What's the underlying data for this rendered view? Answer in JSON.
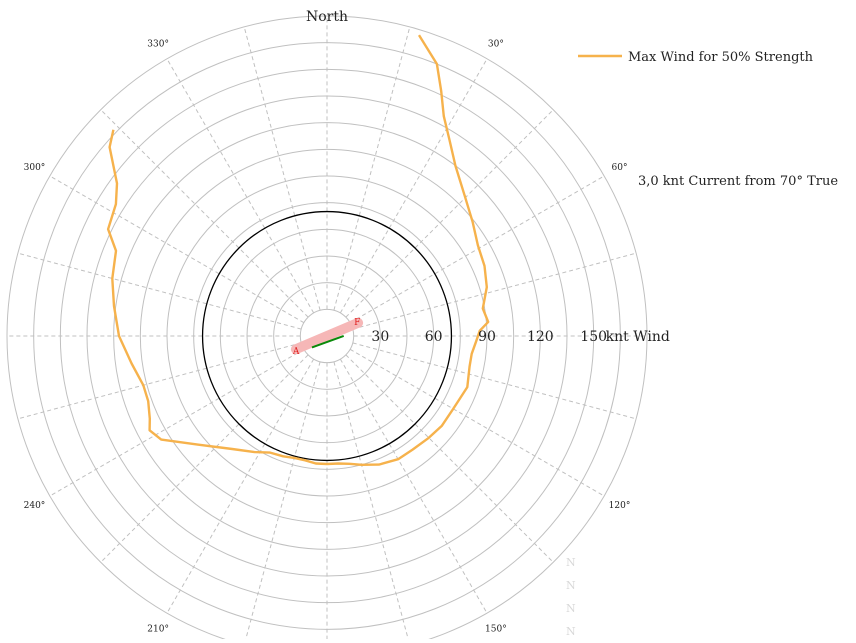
{
  "chart_data": {
    "type": "polar-line",
    "north_label": "North",
    "angle_ticks": [
      {
        "deg": 30,
        "label": "30°"
      },
      {
        "deg": 60,
        "label": "60°"
      },
      {
        "deg": 120,
        "label": "120°"
      },
      {
        "deg": 150,
        "label": "150°"
      },
      {
        "deg": 210,
        "label": "210°"
      },
      {
        "deg": 240,
        "label": "240°"
      },
      {
        "deg": 300,
        "label": "300°"
      },
      {
        "deg": 330,
        "label": "330°"
      }
    ],
    "radial_ticks": [
      {
        "value": 30,
        "label": "30"
      },
      {
        "value": 60,
        "label": "60"
      },
      {
        "value": 90,
        "label": "90"
      },
      {
        "value": 120,
        "label": "120"
      },
      {
        "value": 150,
        "label": "150"
      }
    ],
    "radial_unit": "knt Wind",
    "rmax": 180,
    "grid_ring_step": 15,
    "reference_ring": 70,
    "current_annotation": "3,0 knt Current from 70° True",
    "legend": {
      "placement": "top-right",
      "label": "Max Wind for 50% Strength"
    },
    "markers": {
      "start_label": "A",
      "end_label": "F"
    },
    "footer_letters": [
      "N",
      "N",
      "N",
      "N"
    ],
    "series": [
      {
        "name": "Max Wind for 50% Strength",
        "color": "#f6b24c",
        "points": [
          [
            17,
            177
          ],
          [
            22,
            165
          ],
          [
            25,
            152
          ],
          [
            28,
            140
          ],
          [
            32,
            130
          ],
          [
            37,
            120
          ],
          [
            45,
            110
          ],
          [
            52,
            104
          ],
          [
            59,
            99
          ],
          [
            66,
            97
          ],
          [
            73,
            94
          ],
          [
            80,
            89
          ],
          [
            85,
            91
          ],
          [
            88,
            86
          ],
          [
            92,
            84
          ],
          [
            97,
            82
          ],
          [
            102,
            82
          ],
          [
            110,
            84
          ],
          [
            120,
            82
          ],
          [
            128,
            82
          ],
          [
            135,
            81
          ],
          [
            143,
            80
          ],
          [
            150,
            80
          ],
          [
            158,
            78
          ],
          [
            165,
            75
          ],
          [
            170,
            73
          ],
          [
            175,
            72
          ],
          [
            180,
            72
          ],
          [
            185,
            72
          ],
          [
            190,
            71
          ],
          [
            195,
            71
          ],
          [
            200,
            72
          ],
          [
            206,
            73
          ],
          [
            212,
            77
          ],
          [
            220,
            83
          ],
          [
            230,
            95
          ],
          [
            238,
            110
          ],
          [
            242,
            113
          ],
          [
            245,
            110
          ],
          [
            250,
            107
          ],
          [
            255,
            107
          ],
          [
            262,
            111
          ],
          [
            270,
            117
          ],
          [
            278,
            121
          ],
          [
            285,
            125
          ],
          [
            292,
            128
          ],
          [
            296,
            137
          ],
          [
            302,
            140
          ],
          [
            306,
            146
          ],
          [
            311,
            162
          ],
          [
            314,
            167
          ]
        ]
      }
    ]
  },
  "colors": {
    "grid": "#c0c0c0",
    "reference_ring": "#000000",
    "series": "#f6b24c",
    "marker_bar": "#f6b7b7",
    "marker_text": "#e02020",
    "current_arrow": "#0a8a0a"
  }
}
